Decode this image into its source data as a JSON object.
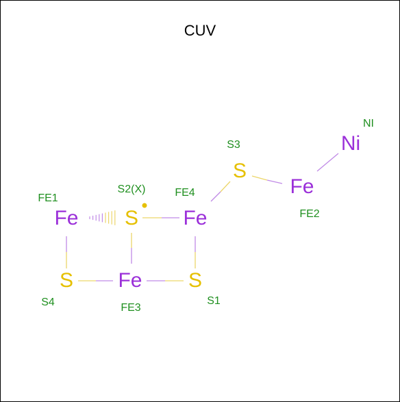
{
  "title": "CUV",
  "nodes": [
    {
      "label": "Fe",
      "name": "FE1"
    },
    {
      "label": "S",
      "name": "S2(X)"
    },
    {
      "label": "Fe",
      "name": "FE4"
    },
    {
      "label": "S",
      "name": "S3"
    },
    {
      "label": "Fe",
      "name": "FE2"
    },
    {
      "label": "Ni",
      "name": "NI"
    },
    {
      "label": "S",
      "name": "S4"
    },
    {
      "label": "Fe",
      "name": "FE3"
    },
    {
      "label": "S",
      "name": "S1"
    }
  ]
}
